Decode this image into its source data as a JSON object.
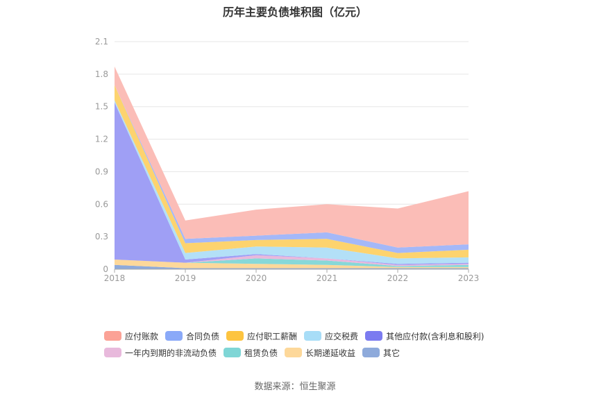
{
  "chart_data": {
    "type": "area",
    "stacked": true,
    "title": "历年主要负债堆积图（亿元）",
    "x": [
      "2018",
      "2019",
      "2020",
      "2021",
      "2022",
      "2023"
    ],
    "ylim": [
      0,
      2.1
    ],
    "yticks": [
      "0",
      "0.3",
      "0.6",
      "0.9",
      "1.2",
      "1.5",
      "1.8",
      "2.1"
    ],
    "grid": true,
    "legend_position": "bottom",
    "series": [
      {
        "name": "其它",
        "color": "#8eaadb",
        "values": [
          0.04,
          0.01,
          0.01,
          0.01,
          0.01,
          0.01
        ]
      },
      {
        "name": "长期递延收益",
        "color": "#fdd89a",
        "values": [
          0.05,
          0.05,
          0.04,
          0.03,
          0.01,
          0.01
        ]
      },
      {
        "name": "租赁负债",
        "color": "#87d8d8",
        "values": [
          0.0,
          0.0,
          0.05,
          0.04,
          0.01,
          0.02
        ]
      },
      {
        "name": "一年内到期的非流动负债",
        "color": "#e8b9dc",
        "values": [
          0.0,
          0.0,
          0.03,
          0.02,
          0.01,
          0.01
        ]
      },
      {
        "name": "其他应付款(含利息和股利)",
        "color": "#9f9ff5",
        "values": [
          1.45,
          0.03,
          0.01,
          0.0,
          0.01,
          0.01
        ]
      },
      {
        "name": "应交税费",
        "color": "#b3e0f7",
        "values": [
          0.02,
          0.06,
          0.07,
          0.1,
          0.05,
          0.05
        ]
      },
      {
        "name": "应付职工薪酬",
        "color": "#fdd36e",
        "values": [
          0.14,
          0.09,
          0.06,
          0.08,
          0.05,
          0.07
        ]
      },
      {
        "name": "合同负债",
        "color": "#a4b8f8",
        "values": [
          0.0,
          0.04,
          0.04,
          0.06,
          0.05,
          0.05
        ]
      },
      {
        "name": "应付账款",
        "color": "#fbbdb7",
        "values": [
          0.17,
          0.17,
          0.24,
          0.26,
          0.36,
          0.49
        ]
      }
    ]
  },
  "legend": {
    "row1": [
      {
        "label": "应付账款",
        "color": "#fba296"
      },
      {
        "label": "合同负债",
        "color": "#8aa9f8"
      },
      {
        "label": "应付职工薪酬",
        "color": "#fdc440"
      },
      {
        "label": "应交税费",
        "color": "#a8ddf7"
      },
      {
        "label": "其他应付款(含利息和股利)",
        "color": "#7b7bf0"
      }
    ],
    "row2": [
      {
        "label": "一年内到期的非流动负债",
        "color": "#e8b9dc"
      },
      {
        "label": "租赁负债",
        "color": "#7fd6d6"
      },
      {
        "label": "长期递延收益",
        "color": "#fdd89a"
      },
      {
        "label": "其它",
        "color": "#8eaadb"
      }
    ]
  },
  "source": "数据来源：恒生聚源"
}
